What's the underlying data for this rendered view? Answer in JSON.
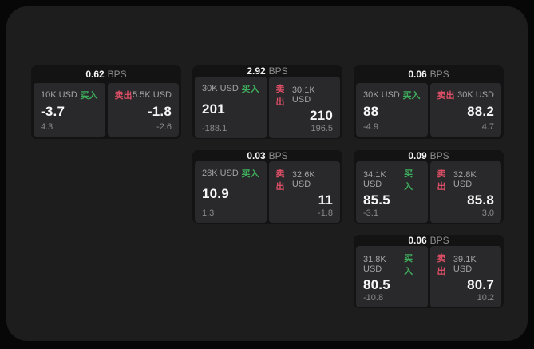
{
  "labels": {
    "bps_unit": "BPS",
    "buy": "买入",
    "sell": "卖出"
  },
  "colors": {
    "buy": "#3ead5c",
    "sell": "#dd4f66",
    "container_bg": "#1d1d1e",
    "card_bg": "#131314",
    "panel_bg": "#29292b"
  },
  "cards": [
    {
      "col": 1,
      "row": 1,
      "bps": "0.62",
      "buy": {
        "amount": "10K USD",
        "price": "-3.7",
        "delta": "4.3"
      },
      "sell": {
        "amount": "5.5K USD",
        "price": "-1.8",
        "delta": "-2.6"
      }
    },
    {
      "col": 2,
      "row": 1,
      "bps": "2.92",
      "buy": {
        "amount": "30K USD",
        "price": "201",
        "delta": "-188.1"
      },
      "sell": {
        "amount": "30.1K USD",
        "price": "210",
        "delta": "196.5"
      }
    },
    {
      "col": 3,
      "row": 1,
      "bps": "0.06",
      "buy": {
        "amount": "30K USD",
        "price": "88",
        "delta": "-4.9"
      },
      "sell": {
        "amount": "30K USD",
        "price": "88.2",
        "delta": "4.7"
      }
    },
    {
      "col": 2,
      "row": 2,
      "bps": "0.03",
      "buy": {
        "amount": "28K USD",
        "price": "10.9",
        "delta": "1.3"
      },
      "sell": {
        "amount": "32.6K USD",
        "price": "11",
        "delta": "-1.8"
      }
    },
    {
      "col": 3,
      "row": 2,
      "bps": "0.09",
      "buy": {
        "amount": "34.1K USD",
        "price": "85.5",
        "delta": "-3.1"
      },
      "sell": {
        "amount": "32.8K USD",
        "price": "85.8",
        "delta": "3.0"
      }
    },
    {
      "col": 3,
      "row": 3,
      "bps": "0.06",
      "buy": {
        "amount": "31.8K USD",
        "price": "80.5",
        "delta": "-10.8"
      },
      "sell": {
        "amount": "39.1K USD",
        "price": "80.7",
        "delta": "10.2"
      }
    }
  ]
}
